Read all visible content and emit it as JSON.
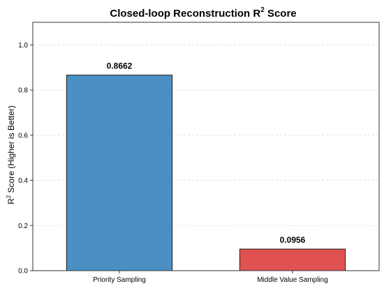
{
  "chart_data": {
    "type": "bar",
    "title": "Closed-loop Reconstruction R",
    "title_superscript": "2",
    "title_suffix": " Score",
    "ylabel": "R",
    "ylabel_superscript": "2",
    "ylabel_suffix": " Score (Higher is Better)",
    "xlabel": "",
    "categories": [
      "Priority Sampling",
      "Middle Value Sampling"
    ],
    "values": [
      0.8662,
      0.0956
    ],
    "value_labels": [
      "0.8662",
      "0.0956"
    ],
    "colors": [
      "#4a90c4",
      "#e05252"
    ],
    "ylim": [
      0,
      1.1
    ],
    "yticks": [
      0.0,
      0.2,
      0.4,
      0.6,
      0.8,
      1.0
    ],
    "ytick_labels": [
      "0.0",
      "0.2",
      "0.4",
      "0.6",
      "0.8",
      "1.0"
    ],
    "grid": "y-dashed",
    "legend": "none"
  }
}
